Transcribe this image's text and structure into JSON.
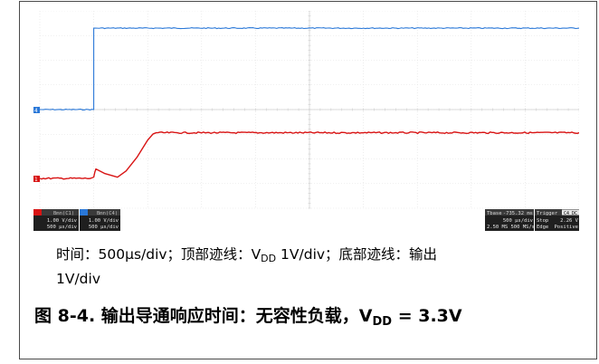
{
  "chart_data": {
    "type": "line",
    "title": "",
    "xlabel": "",
    "ylabel": "",
    "x_units": "ms",
    "xlim": [
      0,
      5
    ],
    "ylim": [
      -4,
      4
    ],
    "trigger_time_ms": 0.5,
    "series": [
      {
        "id": "ch4",
        "color": "#2a78d8",
        "points": [
          [
            0,
            0
          ],
          [
            0.5,
            0
          ],
          [
            0.5,
            3.3
          ],
          [
            5,
            3.3
          ]
        ]
      },
      {
        "id": "ch1",
        "color": "#d81414",
        "points": [
          [
            0,
            0
          ],
          [
            0.47,
            0
          ],
          [
            0.5,
            0.05
          ],
          [
            0.51,
            0.25
          ],
          [
            0.52,
            0.38
          ],
          [
            0.6,
            0.2
          ],
          [
            0.72,
            0.05
          ],
          [
            0.8,
            0.3
          ],
          [
            0.9,
            0.85
          ],
          [
            1.0,
            1.55
          ],
          [
            1.05,
            1.8
          ],
          [
            1.08,
            1.85
          ],
          [
            5,
            1.85
          ]
        ]
      }
    ]
  },
  "scope": {
    "ch1_marker": "1",
    "ch4_marker": "4",
    "ch1_box": {
      "title": "Bmn(C1)",
      "scale": "1.00 V/div",
      "time": "500 µs/div"
    },
    "ch4_box": {
      "title": "Bmn(C4)",
      "scale": "1.00 V/div",
      "time": "500 µs/div"
    },
    "timebase": {
      "label": "Tbase",
      "value": "-735.32 ms",
      "div": "500 µs/div",
      "sample": "2.50 MS   500 MS/s"
    },
    "trigger": {
      "label": "Trigger",
      "badge": "C4 DC",
      "mode": "Stop",
      "level": "2.26 V",
      "type": "Edge",
      "slope": "Positive"
    }
  },
  "caption": {
    "line1_pre": "时间：500µs/div；顶部迹线：V",
    "line1_sub": "DD",
    "line1_post": " 1V/div；底部迹线：输出",
    "line2": "1V/div"
  },
  "figure_title": {
    "pre": "图 8-4. 输出导通响应时间：无容性负载，V",
    "sub": "DD",
    "post": " = 3.3V"
  }
}
